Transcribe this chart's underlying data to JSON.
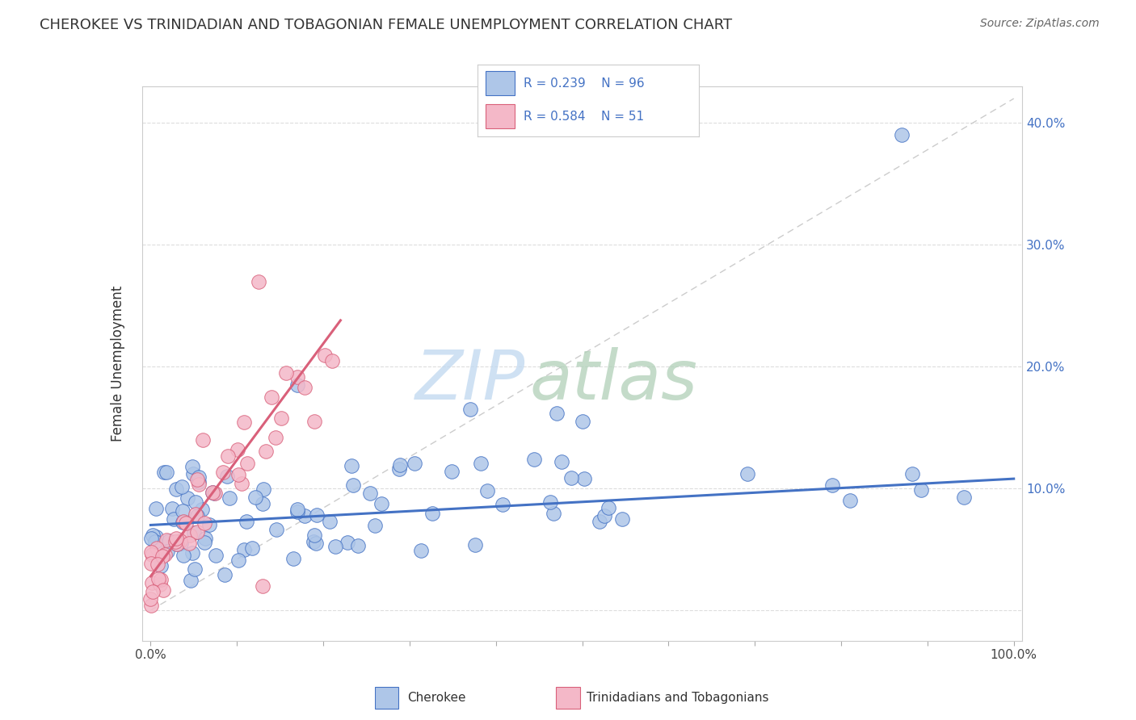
{
  "title": "CHEROKEE VS TRINIDADIAN AND TOBAGONIAN FEMALE UNEMPLOYMENT CORRELATION CHART",
  "source": "Source: ZipAtlas.com",
  "ylabel": "Female Unemployment",
  "cherokee_R": "0.239",
  "cherokee_N": "96",
  "trinidadian_R": "0.584",
  "trinidadian_N": "51",
  "cherokee_color": "#aec6e8",
  "cherokee_edge_color": "#4472c4",
  "cherokee_line_color": "#4472c4",
  "trinidadian_color": "#f4b8c8",
  "trinidadian_edge_color": "#d9607a",
  "trinidadian_line_color": "#d9607a",
  "legend_text_color": "#4472c4",
  "watermark_zip_color": "#b8d0e8",
  "watermark_atlas_color": "#b8d8c0",
  "background_color": "#ffffff",
  "grid_color": "#dddddd",
  "spine_color": "#cccccc",
  "ytick_color": "#4472c4",
  "xlim": [
    -0.01,
    1.01
  ],
  "ylim": [
    -0.025,
    0.43
  ],
  "xticks": [
    0.0,
    0.1,
    0.2,
    0.3,
    0.4,
    0.5,
    0.6,
    0.7,
    0.8,
    0.9,
    1.0
  ],
  "xticklabels": [
    "0.0%",
    "",
    "",
    "",
    "",
    "",
    "",
    "",
    "",
    "",
    "100.0%"
  ],
  "yticks": [
    0.0,
    0.1,
    0.2,
    0.3,
    0.4
  ],
  "yticklabels": [
    "",
    "10.0%",
    "20.0%",
    "30.0%",
    "40.0%"
  ],
  "diag_line_color": "#cccccc",
  "cherokee_line_x": [
    0.0,
    1.0
  ],
  "cherokee_line_y": [
    0.07,
    0.108
  ],
  "trin_line_x": [
    0.0,
    0.22
  ],
  "trin_line_y": [
    0.028,
    0.238
  ]
}
